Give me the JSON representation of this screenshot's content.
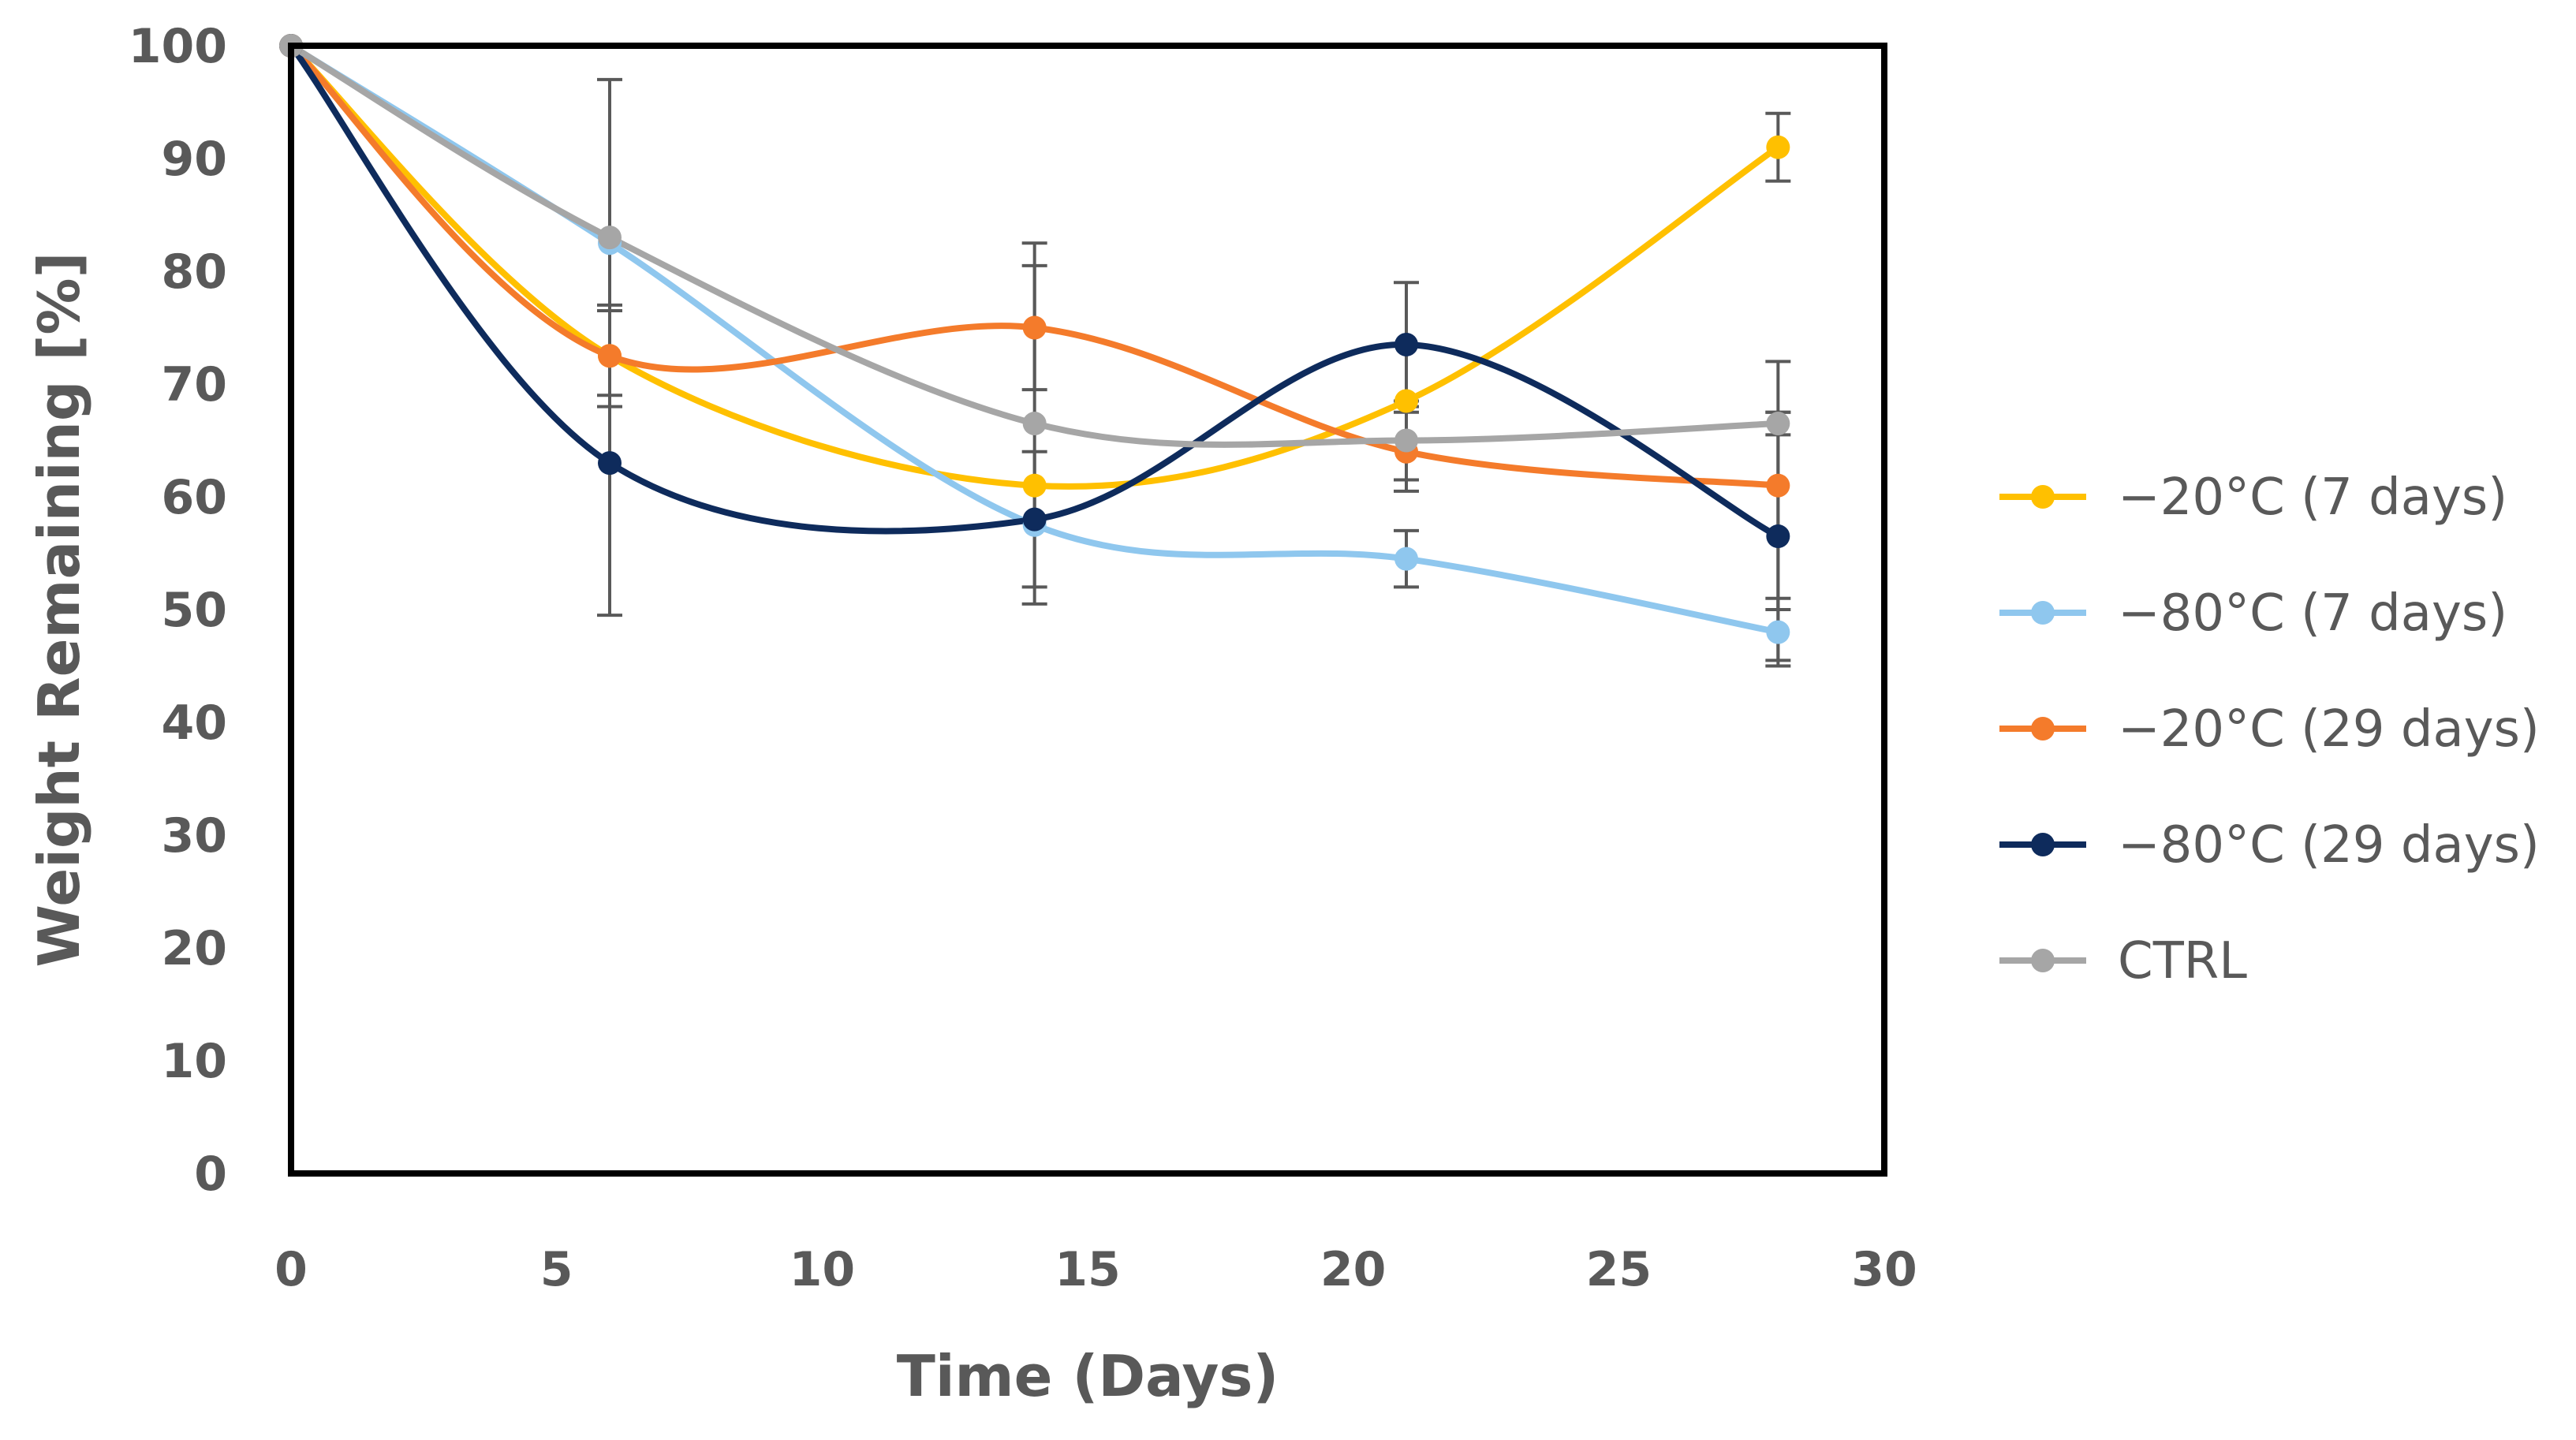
{
  "chart_data": {
    "type": "line",
    "title": "",
    "xlabel": "Time (Days)",
    "ylabel": "Weight Remaining [%]",
    "xlim": [
      0,
      30
    ],
    "ylim": [
      0,
      100
    ],
    "xticks": [
      "0",
      "5",
      "10",
      "15",
      "20",
      "25",
      "30"
    ],
    "yticks": [
      "0",
      "10",
      "20",
      "30",
      "40",
      "50",
      "60",
      "70",
      "80",
      "90",
      "100"
    ],
    "grid": false,
    "legend_position": "right",
    "x": [
      0,
      6,
      14,
      21,
      28
    ],
    "series": [
      {
        "name": "−20°C (7 days)",
        "color": "#FFC000",
        "values": [
          100,
          72.5,
          61,
          68.5,
          91
        ],
        "error": [
          0,
          0,
          0,
          0,
          3
        ]
      },
      {
        "name": "−80°C (7 days)",
        "color": "#8FC7EE",
        "values": [
          100,
          82.5,
          57.5,
          54.5,
          48
        ],
        "error": [
          0,
          0,
          0,
          2.5,
          3
        ]
      },
      {
        "name": "−20°C (29 days)",
        "color": "#F47B2B",
        "values": [
          100,
          72.5,
          75,
          64,
          61
        ],
        "error": [
          0,
          4.5,
          5.5,
          3.5,
          11
        ]
      },
      {
        "name": "−80°C (29 days)",
        "color": "#0E2B5C",
        "values": [
          100,
          63,
          58,
          73.5,
          56.5
        ],
        "error": [
          0,
          13.5,
          6,
          5.5,
          11
        ]
      },
      {
        "name": "CTRL",
        "color": "#A6A6A6",
        "values": [
          100,
          83,
          66.5,
          65,
          66.5
        ],
        "error": [
          0,
          14,
          16,
          3.5,
          1
        ]
      }
    ]
  }
}
